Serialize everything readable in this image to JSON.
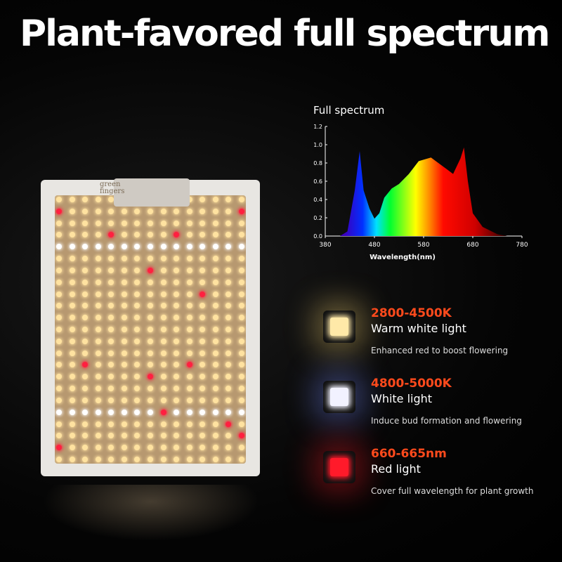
{
  "headline": "Plant-favored full spectrum",
  "logo_text": "green fingers",
  "chart_data": {
    "type": "area",
    "title": "Full spectrum",
    "xlabel": "Wavelength(nm)",
    "ylabel": "",
    "xlim": [
      380,
      780
    ],
    "ylim": [
      0,
      1.2
    ],
    "x_ticks": [
      "380",
      "480",
      "580",
      "680",
      "780"
    ],
    "y_ticks": [
      "0.0",
      "0.2",
      "0.4",
      "0.6",
      "0.8",
      "1.0",
      "1.2"
    ],
    "grid": false,
    "x": [
      410,
      425,
      440,
      450,
      458,
      470,
      480,
      490,
      500,
      515,
      530,
      550,
      570,
      595,
      615,
      640,
      655,
      662,
      670,
      680,
      700,
      730,
      750
    ],
    "y": [
      0,
      0.05,
      0.5,
      0.93,
      0.5,
      0.3,
      0.19,
      0.25,
      0.42,
      0.52,
      0.57,
      0.68,
      0.82,
      0.86,
      0.78,
      0.68,
      0.85,
      0.97,
      0.6,
      0.25,
      0.1,
      0.02,
      0
    ],
    "fill": "visible-spectrum gradient"
  },
  "features": [
    {
      "range": "2800-4500K",
      "name": "Warm white light",
      "desc": "Enhanced red to boost flowering",
      "color": "#ffe9a8",
      "glow": "rgba(255,220,120,0.35)"
    },
    {
      "range": "4800-5000K",
      "name": "White light",
      "desc": "Induce bud formation and flowering",
      "color": "#f2f2ff",
      "glow": "rgba(120,140,255,0.35)"
    },
    {
      "range": "660-665nm",
      "name": "Red light",
      "desc": "Cover full wavelength for plant growth",
      "color": "#ff1a2a",
      "glow": "rgba(255,30,40,0.35)"
    }
  ],
  "colors": {
    "accent": "#ff4a1c",
    "warm_led": "#ffe2a0",
    "white_led": "#ffffff",
    "red_led": "#ff2040"
  }
}
